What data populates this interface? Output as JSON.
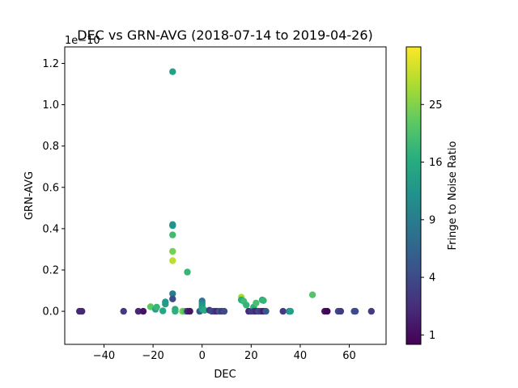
{
  "chart_data": {
    "type": "scatter",
    "title": "DEC vs GRN-AVG (2018-07-14 to 2019-04-26)",
    "xlabel": "DEC",
    "ylabel": "GRN-AVG",
    "y_offset_label": "1e−10",
    "xlim": [
      -56,
      75
    ],
    "ylim": [
      -0.16,
      1.28
    ],
    "x_ticks": [
      -40,
      -20,
      0,
      20,
      40,
      60
    ],
    "x_tick_labels": [
      "−40",
      "−20",
      "0",
      "20",
      "40",
      "60"
    ],
    "y_ticks": [
      0.0,
      0.2,
      0.4,
      0.6,
      0.8,
      1.0,
      1.2
    ],
    "y_tick_labels": [
      "0.0",
      "0.2",
      "0.4",
      "0.6",
      "0.8",
      "1.0",
      "1.2"
    ],
    "colorbar": {
      "label": "Fringe to Noise Ratio",
      "colormap": "viridis",
      "scale": "sqrt",
      "range": [
        0.7,
        36
      ],
      "ticks": [
        1,
        4,
        9,
        16,
        25
      ],
      "tick_labels": [
        "1",
        "4",
        "9",
        "16",
        "25"
      ]
    },
    "points": [
      {
        "x": -50,
        "y": 0.0,
        "c": 2
      },
      {
        "x": -49,
        "y": 0.0,
        "c": 2
      },
      {
        "x": -32,
        "y": 0.0,
        "c": 3
      },
      {
        "x": -26,
        "y": 0.0,
        "c": 2
      },
      {
        "x": -24,
        "y": 0.0,
        "c": 1.2
      },
      {
        "x": -21,
        "y": 0.022,
        "c": 22
      },
      {
        "x": -19,
        "y": 0.01,
        "c": 14
      },
      {
        "x": -18.5,
        "y": 0.02,
        "c": 18
      },
      {
        "x": -16,
        "y": 0.002,
        "c": 15
      },
      {
        "x": -15,
        "y": 0.035,
        "c": 14
      },
      {
        "x": -15,
        "y": 0.045,
        "c": 13
      },
      {
        "x": -12,
        "y": 1.16,
        "c": 14
      },
      {
        "x": -12,
        "y": 0.415,
        "c": 13
      },
      {
        "x": -12,
        "y": 0.42,
        "c": 12
      },
      {
        "x": -12,
        "y": 0.37,
        "c": 19
      },
      {
        "x": -12,
        "y": 0.29,
        "c": 24
      },
      {
        "x": -12,
        "y": 0.245,
        "c": 30
      },
      {
        "x": -12,
        "y": 0.085,
        "c": 9
      },
      {
        "x": -12,
        "y": 0.06,
        "c": 4
      },
      {
        "x": -11,
        "y": 0.01,
        "c": 16
      },
      {
        "x": -11,
        "y": 0.0,
        "c": 17
      },
      {
        "x": -8,
        "y": 0.0,
        "c": 24
      },
      {
        "x": -7,
        "y": 0.0,
        "c": 20
      },
      {
        "x": -6,
        "y": 0.19,
        "c": 18
      },
      {
        "x": -6,
        "y": 0.0,
        "c": 2
      },
      {
        "x": -5,
        "y": 0.0,
        "c": 1.3
      },
      {
        "x": -1,
        "y": 0.0,
        "c": 5
      },
      {
        "x": 0,
        "y": 0.05,
        "c": 8
      },
      {
        "x": 0,
        "y": 0.04,
        "c": 10
      },
      {
        "x": 0,
        "y": 0.03,
        "c": 12
      },
      {
        "x": 0,
        "y": 0.02,
        "c": 13
      },
      {
        "x": 0,
        "y": 0.01,
        "c": 14
      },
      {
        "x": 1,
        "y": 0.005,
        "c": 16
      },
      {
        "x": 3,
        "y": 0.005,
        "c": 3
      },
      {
        "x": 4,
        "y": 0.0,
        "c": 4
      },
      {
        "x": 5,
        "y": 0.0,
        "c": 3
      },
      {
        "x": 6,
        "y": 0.0,
        "c": 2
      },
      {
        "x": 7,
        "y": 0.0,
        "c": 5
      },
      {
        "x": 8,
        "y": 0.0,
        "c": 3
      },
      {
        "x": 9,
        "y": 0.0,
        "c": 4
      },
      {
        "x": 16,
        "y": 0.068,
        "c": 28
      },
      {
        "x": 16,
        "y": 0.055,
        "c": 16
      },
      {
        "x": 17,
        "y": 0.048,
        "c": 19
      },
      {
        "x": 18,
        "y": 0.03,
        "c": 18
      },
      {
        "x": 19,
        "y": 0.0,
        "c": 2
      },
      {
        "x": 20,
        "y": 0.0,
        "c": 3
      },
      {
        "x": 21,
        "y": 0.02,
        "c": 17
      },
      {
        "x": 21,
        "y": 0.0,
        "c": 3
      },
      {
        "x": 22,
        "y": 0.04,
        "c": 20
      },
      {
        "x": 22,
        "y": 0.0,
        "c": 2
      },
      {
        "x": 23,
        "y": 0.0,
        "c": 4
      },
      {
        "x": 24,
        "y": 0.0,
        "c": 3
      },
      {
        "x": 24.5,
        "y": 0.055,
        "c": 17
      },
      {
        "x": 25,
        "y": 0.052,
        "c": 18
      },
      {
        "x": 25,
        "y": 0.0,
        "c": 1.5
      },
      {
        "x": 26,
        "y": 0.0,
        "c": 5
      },
      {
        "x": 33,
        "y": 0.0,
        "c": 3
      },
      {
        "x": 35.5,
        "y": 0.0,
        "c": 10
      },
      {
        "x": 36,
        "y": 0.0,
        "c": 12
      },
      {
        "x": 36,
        "y": 0.0,
        "c": 14
      },
      {
        "x": 45,
        "y": 0.08,
        "c": 21
      },
      {
        "x": 50,
        "y": 0.0,
        "c": 1.2
      },
      {
        "x": 51,
        "y": 0.0,
        "c": 0.8
      },
      {
        "x": 55.5,
        "y": 0.0,
        "c": 4
      },
      {
        "x": 56.5,
        "y": 0.0,
        "c": 3
      },
      {
        "x": 62,
        "y": 0.0,
        "c": 5
      },
      {
        "x": 62.5,
        "y": 0.0,
        "c": 4
      },
      {
        "x": 69,
        "y": 0.0,
        "c": 3
      }
    ]
  }
}
